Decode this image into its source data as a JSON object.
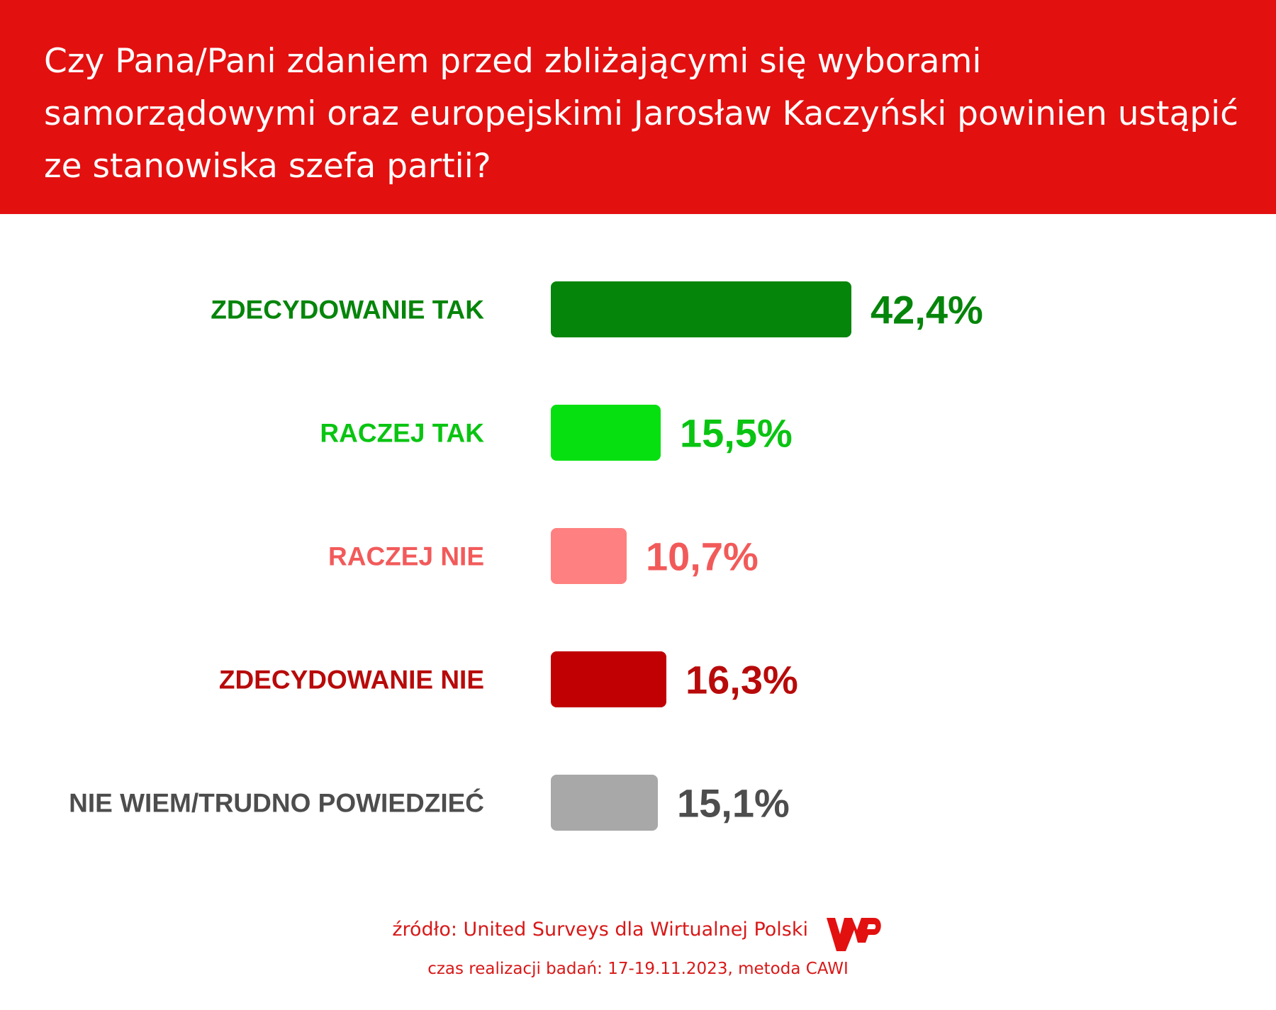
{
  "header": {
    "title": "Czy Pana/Pani zdaniem przed zbliżającymi się wyborami samorządowymi oraz europejskimi Jarosław Kaczyński powinien ustąpić ze stanowiska szefa partii?"
  },
  "chart_data": {
    "type": "bar",
    "orientation": "horizontal",
    "title": "Czy Pana/Pani zdaniem przed zbliżającymi się wyborami samorządowymi oraz europejskimi Jarosław Kaczyński powinien ustąpić ze stanowiska szefa partii?",
    "categories": [
      "ZDECYDOWANIE TAK",
      "RACZEJ TAK",
      "RACZEJ NIE",
      "ZDECYDOWANIE NIE",
      "NIE WIEM/TRUDNO POWIEDZIEĆ"
    ],
    "values": [
      42.4,
      15.5,
      10.7,
      16.3,
      15.1
    ],
    "value_labels": [
      "42,4%",
      "15,5%",
      "10,7%",
      "16,3%",
      "15,1%"
    ],
    "unit": "%",
    "bar_colors": [
      "#05850a",
      "#06e010",
      "#ff8080",
      "#c00003",
      "#a8a8a8"
    ],
    "label_colors": [
      "#05850a",
      "#09c412",
      "#f25a5a",
      "#b80a0a",
      "#4d4d4d"
    ],
    "grid": false,
    "legend": "none"
  },
  "footer": {
    "source": "źródło: United Surveys dla Wirtualnej Polski",
    "time": "czas realizacji badań: 17-19.11.2023, metoda CAWI",
    "logo_text": "WP"
  }
}
